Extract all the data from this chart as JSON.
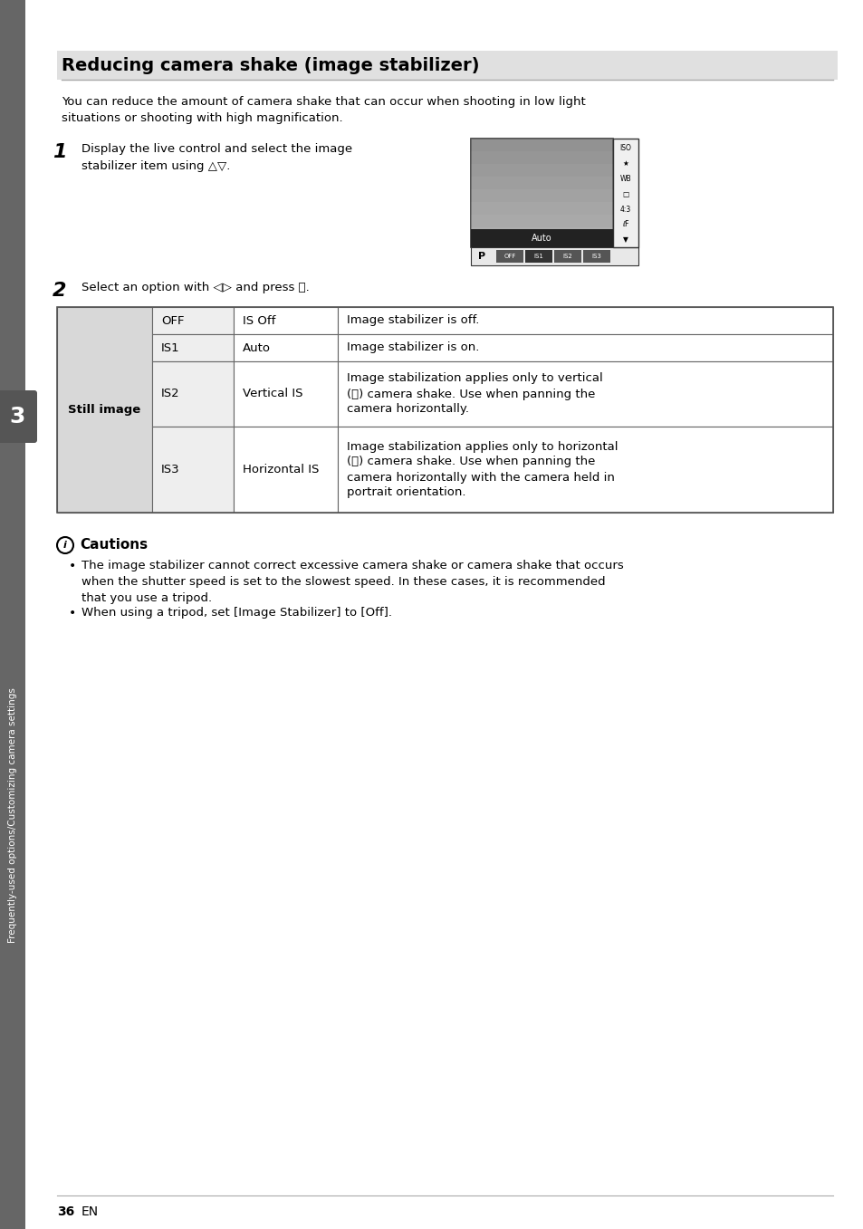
{
  "page_bg": "#ffffff",
  "sidebar_bg": "#666666",
  "sidebar_text": "Frequently-used options/Customizing camera settings",
  "sidebar_text_color": "#ffffff",
  "title": "Reducing camera shake (image stabilizer)",
  "title_bg": "#e0e0e0",
  "intro_text": "You can reduce the amount of camera shake that can occur when shooting in low light\nsituations or shooting with high magnification.",
  "step1_num": "1",
  "step1_text": "Display the live control and select the image\nstabilizer item using △▽.",
  "step2_num": "2",
  "step2_text": "Select an option with ◁▷ and press ⒪.",
  "table_header_col1": "Still image",
  "table_col1": [
    "OFF",
    "IS1",
    "IS2",
    "IS3"
  ],
  "table_col2": [
    "IS Off",
    "Auto",
    "Vertical IS",
    "Horizontal IS"
  ],
  "table_col3": [
    "Image stabilizer is off.",
    "Image stabilizer is on.",
    "Image stabilization applies only to vertical\n(Ⓢ) camera shake. Use when panning the\ncamera horizontally.",
    "Image stabilization applies only to horizontal\n(Ⓢ) camera shake. Use when panning the\ncamera horizontally with the camera held in\nportrait orientation."
  ],
  "caution_title": "Cautions",
  "caution_bullet1": "The image stabilizer cannot correct excessive camera shake or camera shake that occurs\nwhen the shutter speed is set to the slowest speed. In these cases, it is recommended\nthat you use a tripod.",
  "caution_bullet2": "When using a tripod, set [Image Stabilizer] to [Off].",
  "page_number": "36",
  "tab_number": "3",
  "font_size_title": 14,
  "font_size_body": 9.5,
  "font_size_step": 16
}
